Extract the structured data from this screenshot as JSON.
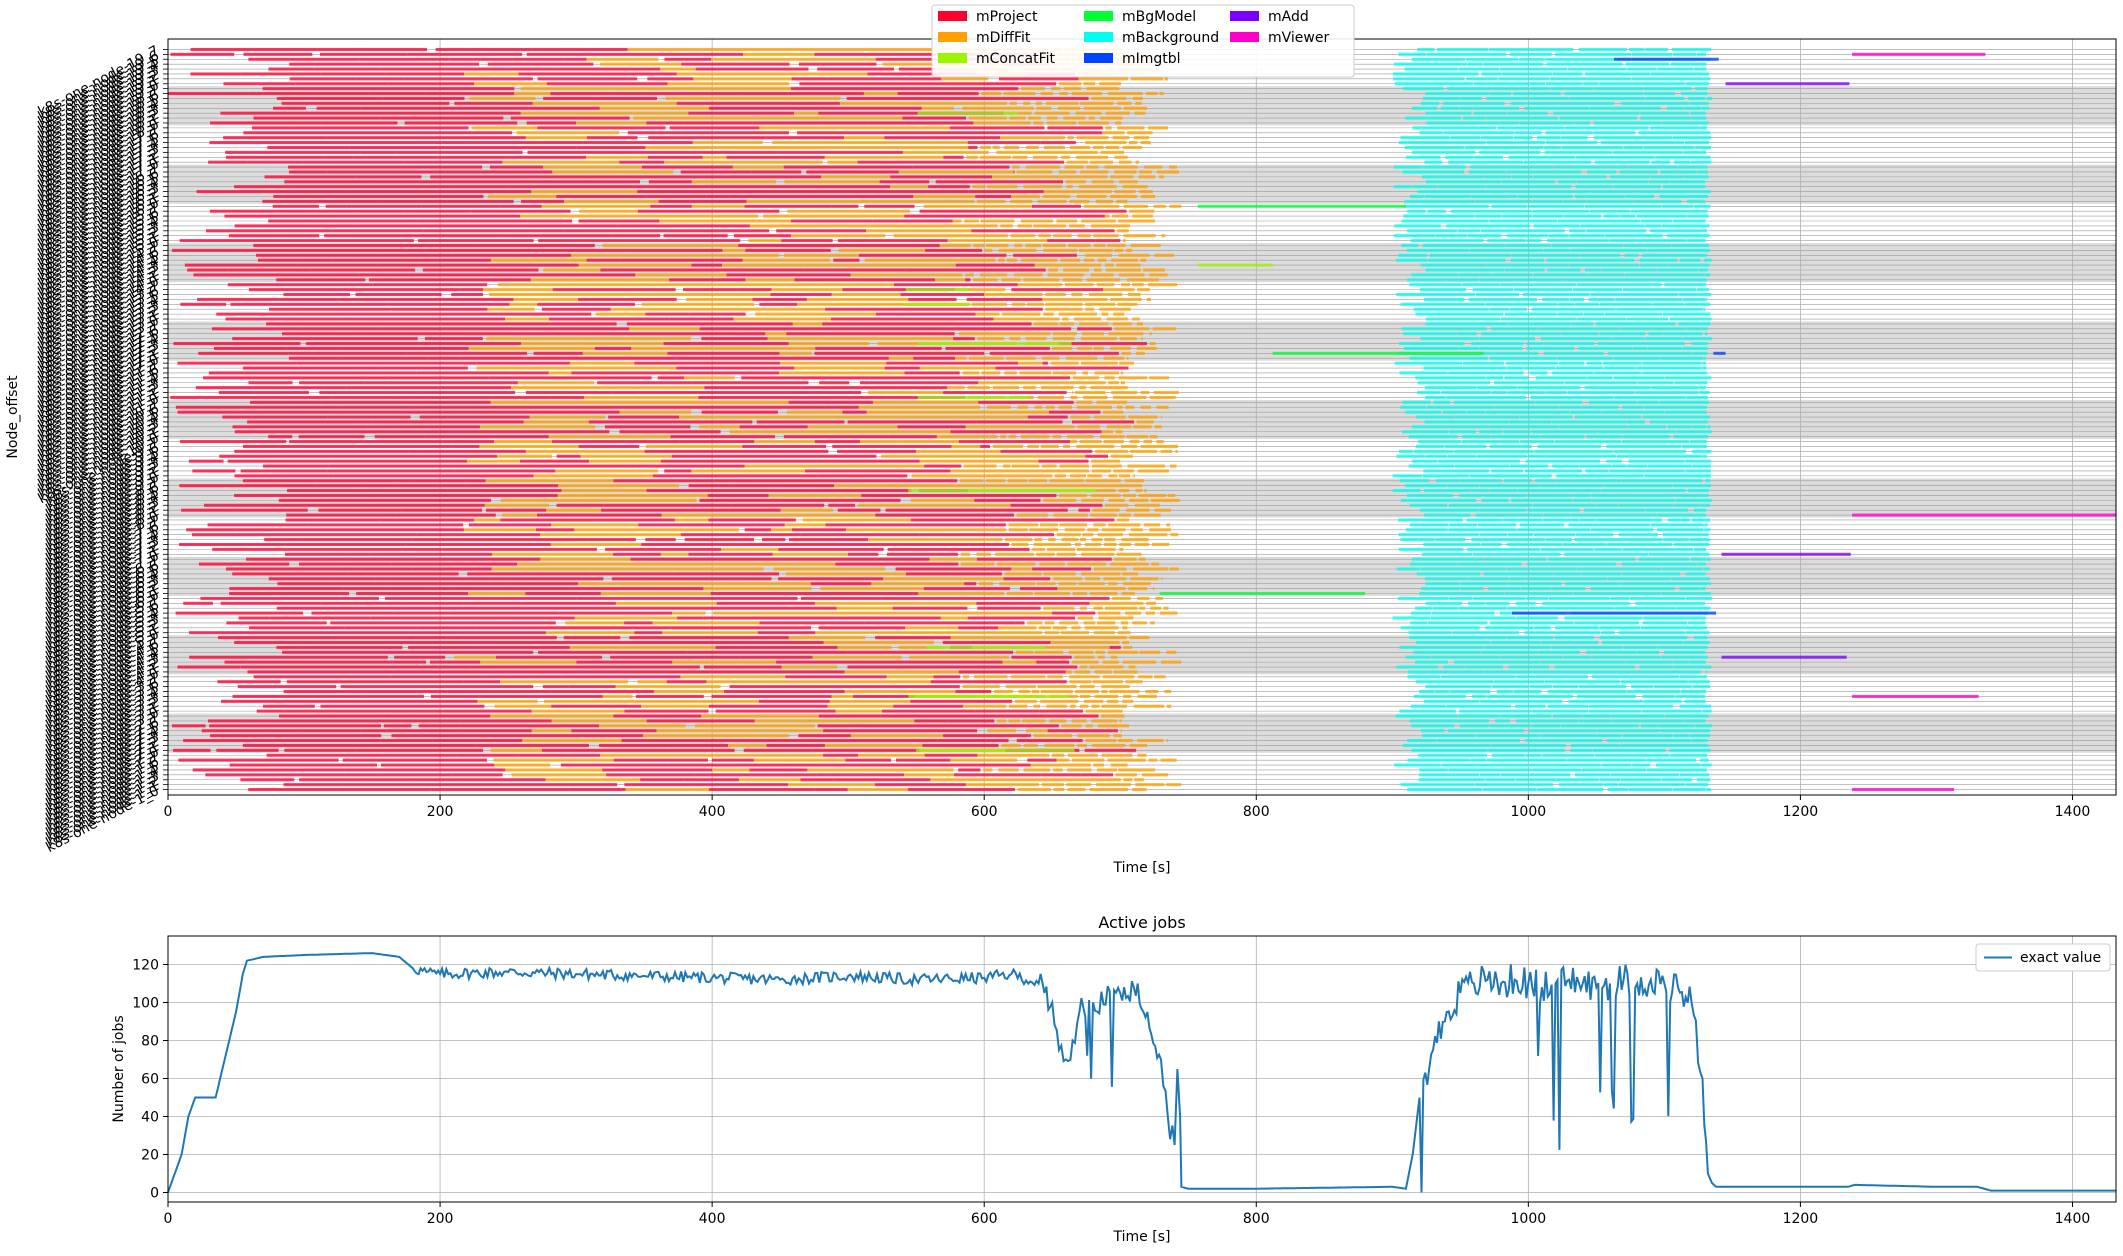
{
  "chart_data": [
    {
      "type": "gantt",
      "xlabel": "Time [s]",
      "ylabel": "Node_offset",
      "xlim": [
        0,
        1432
      ],
      "xticks": [
        0,
        200,
        400,
        600,
        800,
        1000,
        1200,
        1400
      ],
      "grid": true,
      "legend_placement": "top-center",
      "legend": [
        {
          "name": "mProject",
          "color": "#ff0033"
        },
        {
          "name": "mDiffFit",
          "color": "#ff9f00"
        },
        {
          "name": "mConcatFit",
          "color": "#9bf500"
        },
        {
          "name": "mBgModel",
          "color": "#00ff33"
        },
        {
          "name": "mBackground",
          "color": "#00ffee"
        },
        {
          "name": "mImgtbl",
          "color": "#0044ff"
        },
        {
          "name": "mAdd",
          "color": "#7a00ff"
        },
        {
          "name": "mViewer",
          "color": "#ff00cc"
        }
      ],
      "yticklabels": [
        "k8s-one-node-1_0",
        "k8s-one-node-1_1",
        "k8s-one-node-1_2",
        "k8s-one-node-1_3",
        "k8s-one-node-1_4",
        "k8s-one-node-1_5",
        "k8s-one-node-1_6",
        "k8s-one-node-1_7",
        "k8s-one-node-2_0",
        "k8s-one-node-2_1",
        "k8s-one-node-2_2",
        "k8s-one-node-2_3",
        "k8s-one-node-2_4",
        "k8s-one-node-2_5",
        "k8s-one-node-2_6",
        "k8s-one-node-2_7",
        "k8s-one-node-3_0",
        "k8s-one-node-3_1",
        "k8s-one-node-3_2",
        "k8s-one-node-3_3",
        "k8s-one-node-3_4",
        "k8s-one-node-3_5",
        "k8s-one-node-3_6",
        "k8s-one-node-3_7",
        "k8s-one-node-4_0",
        "k8s-one-node-4_1",
        "k8s-one-node-4_2",
        "k8s-one-node-4_3",
        "k8s-one-node-4_4",
        "k8s-one-node-4_5",
        "k8s-one-node-4_6",
        "k8s-one-node-4_7",
        "k8s-one-node-5_0",
        "k8s-one-node-5_1",
        "k8s-one-node-5_2",
        "k8s-one-node-5_3",
        "k8s-one-node-5_4",
        "k8s-one-node-5_5",
        "k8s-one-node-5_6",
        "k8s-one-node-5_7",
        "k8s-one-node-6_0",
        "k8s-one-node-6_1",
        "k8s-one-node-6_2",
        "k8s-one-node-6_3",
        "k8s-one-node-6_4",
        "k8s-one-node-6_5",
        "k8s-one-node-6_6",
        "k8s-one-node-6_7",
        "k8s-one-node-7_0",
        "k8s-one-node-7_1",
        "k8s-one-node-7_2",
        "k8s-one-node-7_3",
        "k8s-one-node-7_4",
        "k8s-one-node-7_5",
        "k8s-one-node-7_6",
        "k8s-one-node-7_7",
        "k8s-one-node-8_0",
        "k8s-one-node-8_1",
        "k8s-one-node-8_2",
        "k8s-one-node-8_3",
        "k8s-one-node-8_4",
        "k8s-one-node-8_5",
        "k8s-one-node-8_6",
        "k8s-one-node-8_7",
        "k8s-one-node-9_0",
        "k8s-one-node-9_1",
        "k8s-one-node-9_2",
        "k8s-one-node-9_3",
        "k8s-one-node-9_4",
        "k8s-one-node-9_5",
        "k8s-one-node-9_6",
        "k8s-one-node-9_7",
        "k8s-one-node-10_0",
        "k8s-one-node-10_1",
        "k8s-one-node-10_2",
        "k8s-one-node-10_3",
        "k8s-one-node-10_4",
        "k8s-one-node-10_5",
        "k8s-one-node-10_6",
        "k8s-one-node-10_7",
        "k8s-one-node-11_0",
        "k8s-one-node-11_1",
        "k8s-one-node-11_2",
        "k8s-one-node-11_3",
        "k8s-one-node-11_4",
        "k8s-one-node-11_5",
        "k8s-one-node-11_6",
        "k8s-one-node-11_7",
        "k8s-one-node-12_0",
        "k8s-one-node-12_1",
        "k8s-one-node-12_2",
        "k8s-one-node-12_3",
        "k8s-one-node-12_4",
        "k8s-one-node-12_5",
        "k8s-one-node-12_6",
        "k8s-one-node-12_7",
        "k8s-one-node-13_0",
        "k8s-one-node-13_1",
        "k8s-one-node-13_2",
        "k8s-one-node-13_3",
        "k8s-one-node-13_4",
        "k8s-one-node-13_5",
        "k8s-one-node-13_6",
        "k8s-one-node-13_7",
        "k8s-one-node-14_0",
        "k8s-one-node-14_1",
        "k8s-one-node-14_2",
        "k8s-one-node-14_3",
        "k8s-one-node-14_4",
        "k8s-one-node-14_5",
        "k8s-one-node-14_6",
        "k8s-one-node-14_7",
        "k8s-one-node-15_0",
        "k8s-one-node-15_1",
        "k8s-one-node-15_2",
        "k8s-one-node-15_3",
        "k8s-one-node-15_4",
        "k8s-one-node-15_5",
        "k8s-one-node-15_6",
        "k8s-one-node-15_7",
        "k8s-one-node-16_0",
        "k8s-one-node-16_1",
        "k8s-one-node-16_2",
        "k8s-one-node-16_3",
        "k8s-one-node-16_4",
        "k8s-one-node-16_5",
        "k8s-one-node-16_6",
        "k8s-one-node-16_7",
        "k8s-one-node-17_0",
        "k8s-one-node-17_1",
        "k8s-one-node-17_2",
        "k8s-one-node-17_3",
        "k8s-one-node-17_4",
        "k8s-one-node-17_5",
        "k8s-one-node-17_6",
        "k8s-one-node-17_7",
        "k8s-one-node-18_0",
        "k8s-one-node-18_1",
        "k8s-one-node-18_2",
        "k8s-one-node-18_3",
        "k8s-one-node-18_4",
        "k8s-one-node-18_5",
        "k8s-one-node-18_6",
        "k8s-one-node-18_7",
        "k8s-one-node-19_0",
        "k8s-one-node-19_1",
        "k8s-one-node-19_2",
        "k8s-one-node-19_3",
        "k8s-one-node-19_4",
        "k8s-one-node-19_5",
        "k8s-one-node-19_6",
        "k8s-one-node-19_7"
      ],
      "stage_windows": [
        {
          "task": "mProject",
          "start": [
            0,
            90
          ],
          "end": [
            490,
            720
          ]
        },
        {
          "task": "mDiffFit",
          "start": [
            210,
            630
          ],
          "end": [
            490,
            745
          ]
        },
        {
          "task": "mConcatFit",
          "start": [
            540,
            560
          ],
          "end": [
            700,
            720
          ]
        },
        {
          "task": "mBackground",
          "start": [
            900,
            925
          ],
          "end": [
            1130,
            1135
          ]
        }
      ],
      "long_tasks": [
        {
          "task": "mBgModel",
          "row": 119,
          "start": 757,
          "end": 910
        },
        {
          "task": "mConcatFit",
          "row": 107,
          "start": 757,
          "end": 812
        },
        {
          "task": "mBgModel",
          "row": 89,
          "start": 812,
          "end": 967
        },
        {
          "task": "mBgModel",
          "row": 40,
          "start": 729,
          "end": 880
        },
        {
          "task": "mImgtbl",
          "row": 149,
          "start": 1063,
          "end": 1140
        },
        {
          "task": "mImgtbl",
          "row": 89,
          "start": 1136,
          "end": 1145
        },
        {
          "task": "mImgtbl",
          "row": 36,
          "start": 988,
          "end": 1138
        },
        {
          "task": "mAdd",
          "row": 144,
          "start": 1145,
          "end": 1236
        },
        {
          "task": "mAdd",
          "row": 48,
          "start": 1142,
          "end": 1237
        },
        {
          "task": "mAdd",
          "row": 27,
          "start": 1142,
          "end": 1234
        },
        {
          "task": "mViewer",
          "row": 150,
          "start": 1238,
          "end": 1336
        },
        {
          "task": "mViewer",
          "row": 56,
          "start": 1238,
          "end": 1432
        },
        {
          "task": "mViewer",
          "row": 19,
          "start": 1238,
          "end": 1331
        },
        {
          "task": "mViewer",
          "row": 0,
          "start": 1238,
          "end": 1313
        }
      ]
    },
    {
      "type": "line",
      "title": "Active jobs",
      "xlabel": "Time [s]",
      "ylabel": "Number of jobs",
      "xlim": [
        0,
        1432
      ],
      "ylim": [
        -5,
        135
      ],
      "xticks": [
        0,
        200,
        400,
        600,
        800,
        1000,
        1200,
        1400
      ],
      "yticks": [
        0,
        20,
        40,
        60,
        80,
        100,
        120
      ],
      "grid": true,
      "legend_placement": "top-right",
      "series": [
        {
          "name": "exact value",
          "color": "#1f77b4",
          "x": [
            0,
            10,
            15,
            20,
            25,
            30,
            35,
            50,
            55,
            58,
            70,
            100,
            150,
            170,
            180,
            190,
            200,
            250,
            300,
            350,
            400,
            450,
            500,
            550,
            600,
            620,
            640,
            650,
            655,
            660,
            665,
            670,
            680,
            700,
            710,
            720,
            730,
            735,
            740,
            742,
            744,
            745,
            750,
            800,
            900,
            910,
            915,
            920,
            930,
            940,
            950,
            960,
            970,
            980,
            990,
            1000,
            1010,
            1020,
            1030,
            1040,
            1050,
            1060,
            1070,
            1080,
            1090,
            1100,
            1110,
            1120,
            1128,
            1132,
            1135,
            1138,
            1140,
            1200,
            1235,
            1240,
            1300,
            1330,
            1340,
            1432
          ],
          "y": [
            0,
            20,
            40,
            50,
            50,
            50,
            50,
            95,
            115,
            122,
            124,
            125,
            126,
            124,
            118,
            116,
            115,
            116,
            115,
            114,
            113,
            112,
            114,
            112,
            113,
            115,
            110,
            100,
            75,
            70,
            80,
            95,
            100,
            105,
            108,
            95,
            70,
            40,
            25,
            65,
            40,
            3,
            2,
            2,
            3,
            2,
            20,
            50,
            75,
            95,
            105,
            110,
            112,
            110,
            112,
            110,
            108,
            110,
            112,
            110,
            108,
            110,
            112,
            110,
            112,
            110,
            108,
            100,
            60,
            10,
            5,
            3,
            3,
            3,
            3,
            4,
            3,
            3,
            1,
            1
          ]
        }
      ]
    }
  ]
}
